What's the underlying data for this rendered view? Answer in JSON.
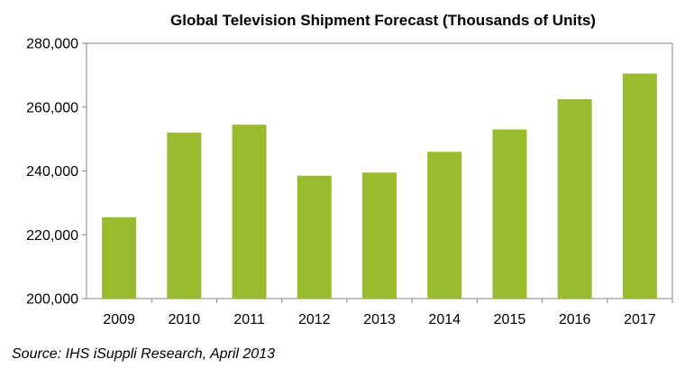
{
  "chart_data": {
    "type": "bar",
    "title": "Global Television Shipment Forecast (Thousands of Units)",
    "xlabel": "",
    "ylabel": "",
    "categories": [
      "2009",
      "2010",
      "2011",
      "2012",
      "2013",
      "2014",
      "2015",
      "2016",
      "2017"
    ],
    "values": [
      225500,
      252000,
      254500,
      238500,
      239500,
      246000,
      253000,
      262500,
      270500
    ],
    "ylim": [
      200000,
      280000
    ],
    "yticks": [
      200000,
      220000,
      240000,
      260000,
      280000
    ],
    "ytick_labels": [
      "200,000",
      "220,000",
      "240,000",
      "260,000",
      "280,000"
    ],
    "grid": false,
    "legend": "none",
    "bar_color": "#9bbb2e",
    "axis_color": "#868686"
  },
  "source": "Source: IHS iSuppli Research, April 2013"
}
